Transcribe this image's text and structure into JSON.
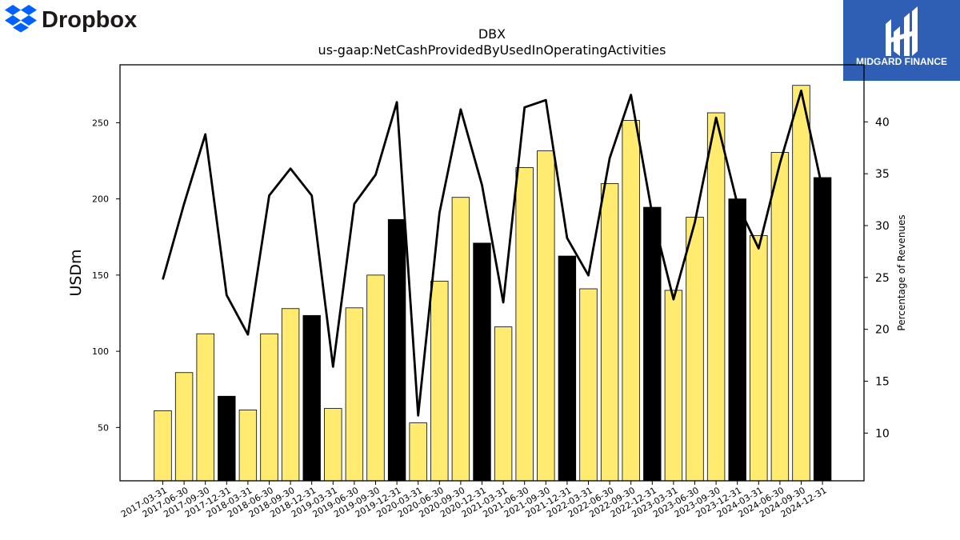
{
  "brand": {
    "left_logo_text": "Dropbox",
    "right_logo_text": "MIDGARD FINANCE",
    "right_logo_bg": "#2f5fb4"
  },
  "chart_data": {
    "type": "bar",
    "title": "DBX",
    "subtitle": "us-gaap:NetCashProvidedByUsedInOperatingActivities",
    "ylabel": "USDm",
    "y2label": "Percentage of Revenues",
    "categories": [
      "2017-03-31",
      "2017-06-30",
      "2017-09-30",
      "2017-12-31",
      "2018-03-31",
      "2018-06-30",
      "2018-09-30",
      "2018-12-31",
      "2019-03-31",
      "2019-06-30",
      "2019-09-30",
      "2019-12-31",
      "2020-03-31",
      "2020-06-30",
      "2020-09-30",
      "2020-12-31",
      "2021-03-31",
      "2021-06-30",
      "2021-09-30",
      "2021-12-31",
      "2022-03-31",
      "2022-06-30",
      "2022-09-30",
      "2022-12-31",
      "2023-03-31",
      "2023-06-30",
      "2023-09-30",
      "2023-12-31",
      "2024-03-31",
      "2024-06-30",
      "2024-09-30",
      "2024-12-31"
    ],
    "values": [
      61,
      86,
      111.5,
      70.5,
      61.5,
      111.5,
      128,
      123.5,
      62.5,
      128.5,
      150,
      186.5,
      53,
      146,
      201,
      171,
      116,
      220.5,
      231.5,
      162.5,
      141,
      210,
      251.5,
      194.5,
      140,
      188,
      256.5,
      200,
      176,
      230.5,
      274.5,
      214
    ],
    "highlight_color": "#000000",
    "bar_color": "#ffeb70",
    "highlighted_categories": [
      "2017-12-31",
      "2018-12-31",
      "2019-12-31",
      "2020-12-31",
      "2021-12-31",
      "2022-12-31",
      "2023-12-31",
      "2024-12-31"
    ],
    "series": [
      {
        "values": [
          24.8,
          32.1,
          38.8,
          23.3,
          19.5,
          32.9,
          35.5,
          32.9,
          16.4,
          32.1,
          34.9,
          41.9,
          11.7,
          31.2,
          41.2,
          33.9,
          22.6,
          41.4,
          42.1,
          28.8,
          25.2,
          36.5,
          42.6,
          31.1,
          22.9,
          30.3,
          40.4,
          32.1,
          27.8,
          36.0,
          43.0,
          33.5
        ]
      }
    ],
    "ylim": [
      15,
      288
    ],
    "y2lim": [
      5.4,
      45.5
    ],
    "yticks": [
      50,
      100,
      150,
      200,
      250
    ],
    "y2ticks": [
      10,
      15,
      20,
      25,
      30,
      35,
      40
    ],
    "grid": false,
    "line_color": "#000000"
  }
}
